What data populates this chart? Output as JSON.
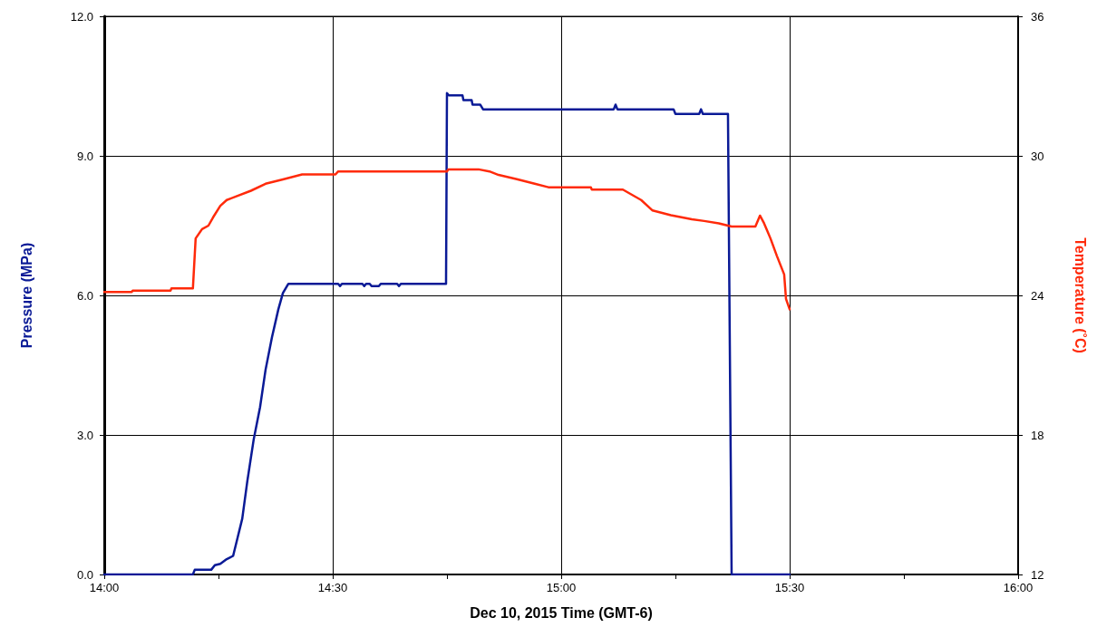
{
  "chart_data": {
    "type": "line",
    "xlabel": "Dec 10, 2015 Time (GMT-6)",
    "ylabel": "Pressure (MPa)",
    "y2label": "Temperature (˚C)",
    "xlim": [
      14,
      16
    ],
    "xticks": [
      {
        "value": 14,
        "label": "14:00"
      },
      {
        "value": 14.25,
        "label": null
      },
      {
        "value": 14.5,
        "label": "14:30"
      },
      {
        "value": 14.75,
        "label": null
      },
      {
        "value": 15,
        "label": "15:00"
      },
      {
        "value": 15.25,
        "label": null
      },
      {
        "value": 15.5,
        "label": "15:30"
      },
      {
        "value": 15.75,
        "label": null
      },
      {
        "value": 16,
        "label": "16:00"
      }
    ],
    "ylim": [
      0,
      12
    ],
    "yticks": [
      {
        "value": 0,
        "label": "0.0"
      },
      {
        "value": 3,
        "label": "3.0"
      },
      {
        "value": 6,
        "label": "6.0"
      },
      {
        "value": 9,
        "label": "9.0"
      },
      {
        "value": 12,
        "label": "12.0"
      }
    ],
    "y2lim": [
      12,
      36
    ],
    "y2ticks": [
      12,
      18,
      24,
      30,
      36
    ],
    "grid": true,
    "marker": "none",
    "line_style": "solid",
    "series": [
      {
        "color": "#0a1a96",
        "x": [
          14,
          14.194,
          14.198,
          14.234,
          14.242,
          14.254,
          14.268,
          14.282,
          14.292,
          14.302,
          14.313,
          14.327,
          14.341,
          14.353,
          14.367,
          14.381,
          14.391,
          14.403,
          14.512,
          14.516,
          14.52,
          14.565,
          14.569,
          14.573,
          14.581,
          14.585,
          14.601,
          14.605,
          14.641,
          14.645,
          14.649,
          14.748,
          14.75,
          14.754,
          14.784,
          14.786,
          14.804,
          14.806,
          14.823,
          14.829,
          15.115,
          15.119,
          15.123,
          15.246,
          15.25,
          15.302,
          15.306,
          15.31,
          15.365,
          15.373,
          15.5
        ],
        "values": [
          0,
          0,
          0.1,
          0.1,
          0.2,
          0.23,
          0.33,
          0.4,
          0.8,
          1.2,
          2.0,
          2.9,
          3.6,
          4.4,
          5.1,
          5.7,
          6.05,
          6.25,
          6.25,
          6.2,
          6.25,
          6.25,
          6.2,
          6.25,
          6.25,
          6.2,
          6.2,
          6.25,
          6.25,
          6.2,
          6.25,
          6.25,
          10.35,
          10.3,
          10.3,
          10.2,
          10.2,
          10.1,
          10.1,
          10.0,
          10.0,
          10.1,
          10.0,
          10.0,
          9.9,
          9.9,
          10.0,
          9.9,
          9.9,
          0,
          0
        ]
      },
      {
        "color": "#ff2a0a",
        "axis": "y2",
        "x": [
          14,
          14.06,
          14.062,
          14.145,
          14.147,
          14.194,
          14.2,
          14.214,
          14.228,
          14.238,
          14.254,
          14.268,
          14.288,
          14.321,
          14.353,
          14.393,
          14.433,
          14.506,
          14.512,
          14.75,
          14.753,
          14.819,
          14.843,
          14.863,
          14.903,
          14.942,
          14.972,
          15.065,
          15.067,
          15.135,
          15.175,
          15.2,
          15.24,
          15.286,
          15.313,
          15.345,
          15.373,
          15.425,
          15.435,
          15.444,
          15.458,
          15.472,
          15.488,
          15.492,
          15.5
        ],
        "values": [
          24.15,
          24.15,
          24.2,
          24.2,
          24.3,
          24.3,
          26.45,
          26.85,
          27.0,
          27.35,
          27.85,
          28.1,
          28.25,
          28.5,
          28.8,
          29.0,
          29.2,
          29.2,
          29.33,
          29.33,
          29.42,
          29.42,
          29.33,
          29.18,
          29.0,
          28.8,
          28.65,
          28.65,
          28.55,
          28.55,
          28.1,
          27.65,
          27.45,
          27.27,
          27.2,
          27.1,
          26.96,
          26.96,
          27.43,
          27.1,
          26.45,
          25.7,
          24.9,
          23.85,
          23.4
        ]
      }
    ]
  }
}
